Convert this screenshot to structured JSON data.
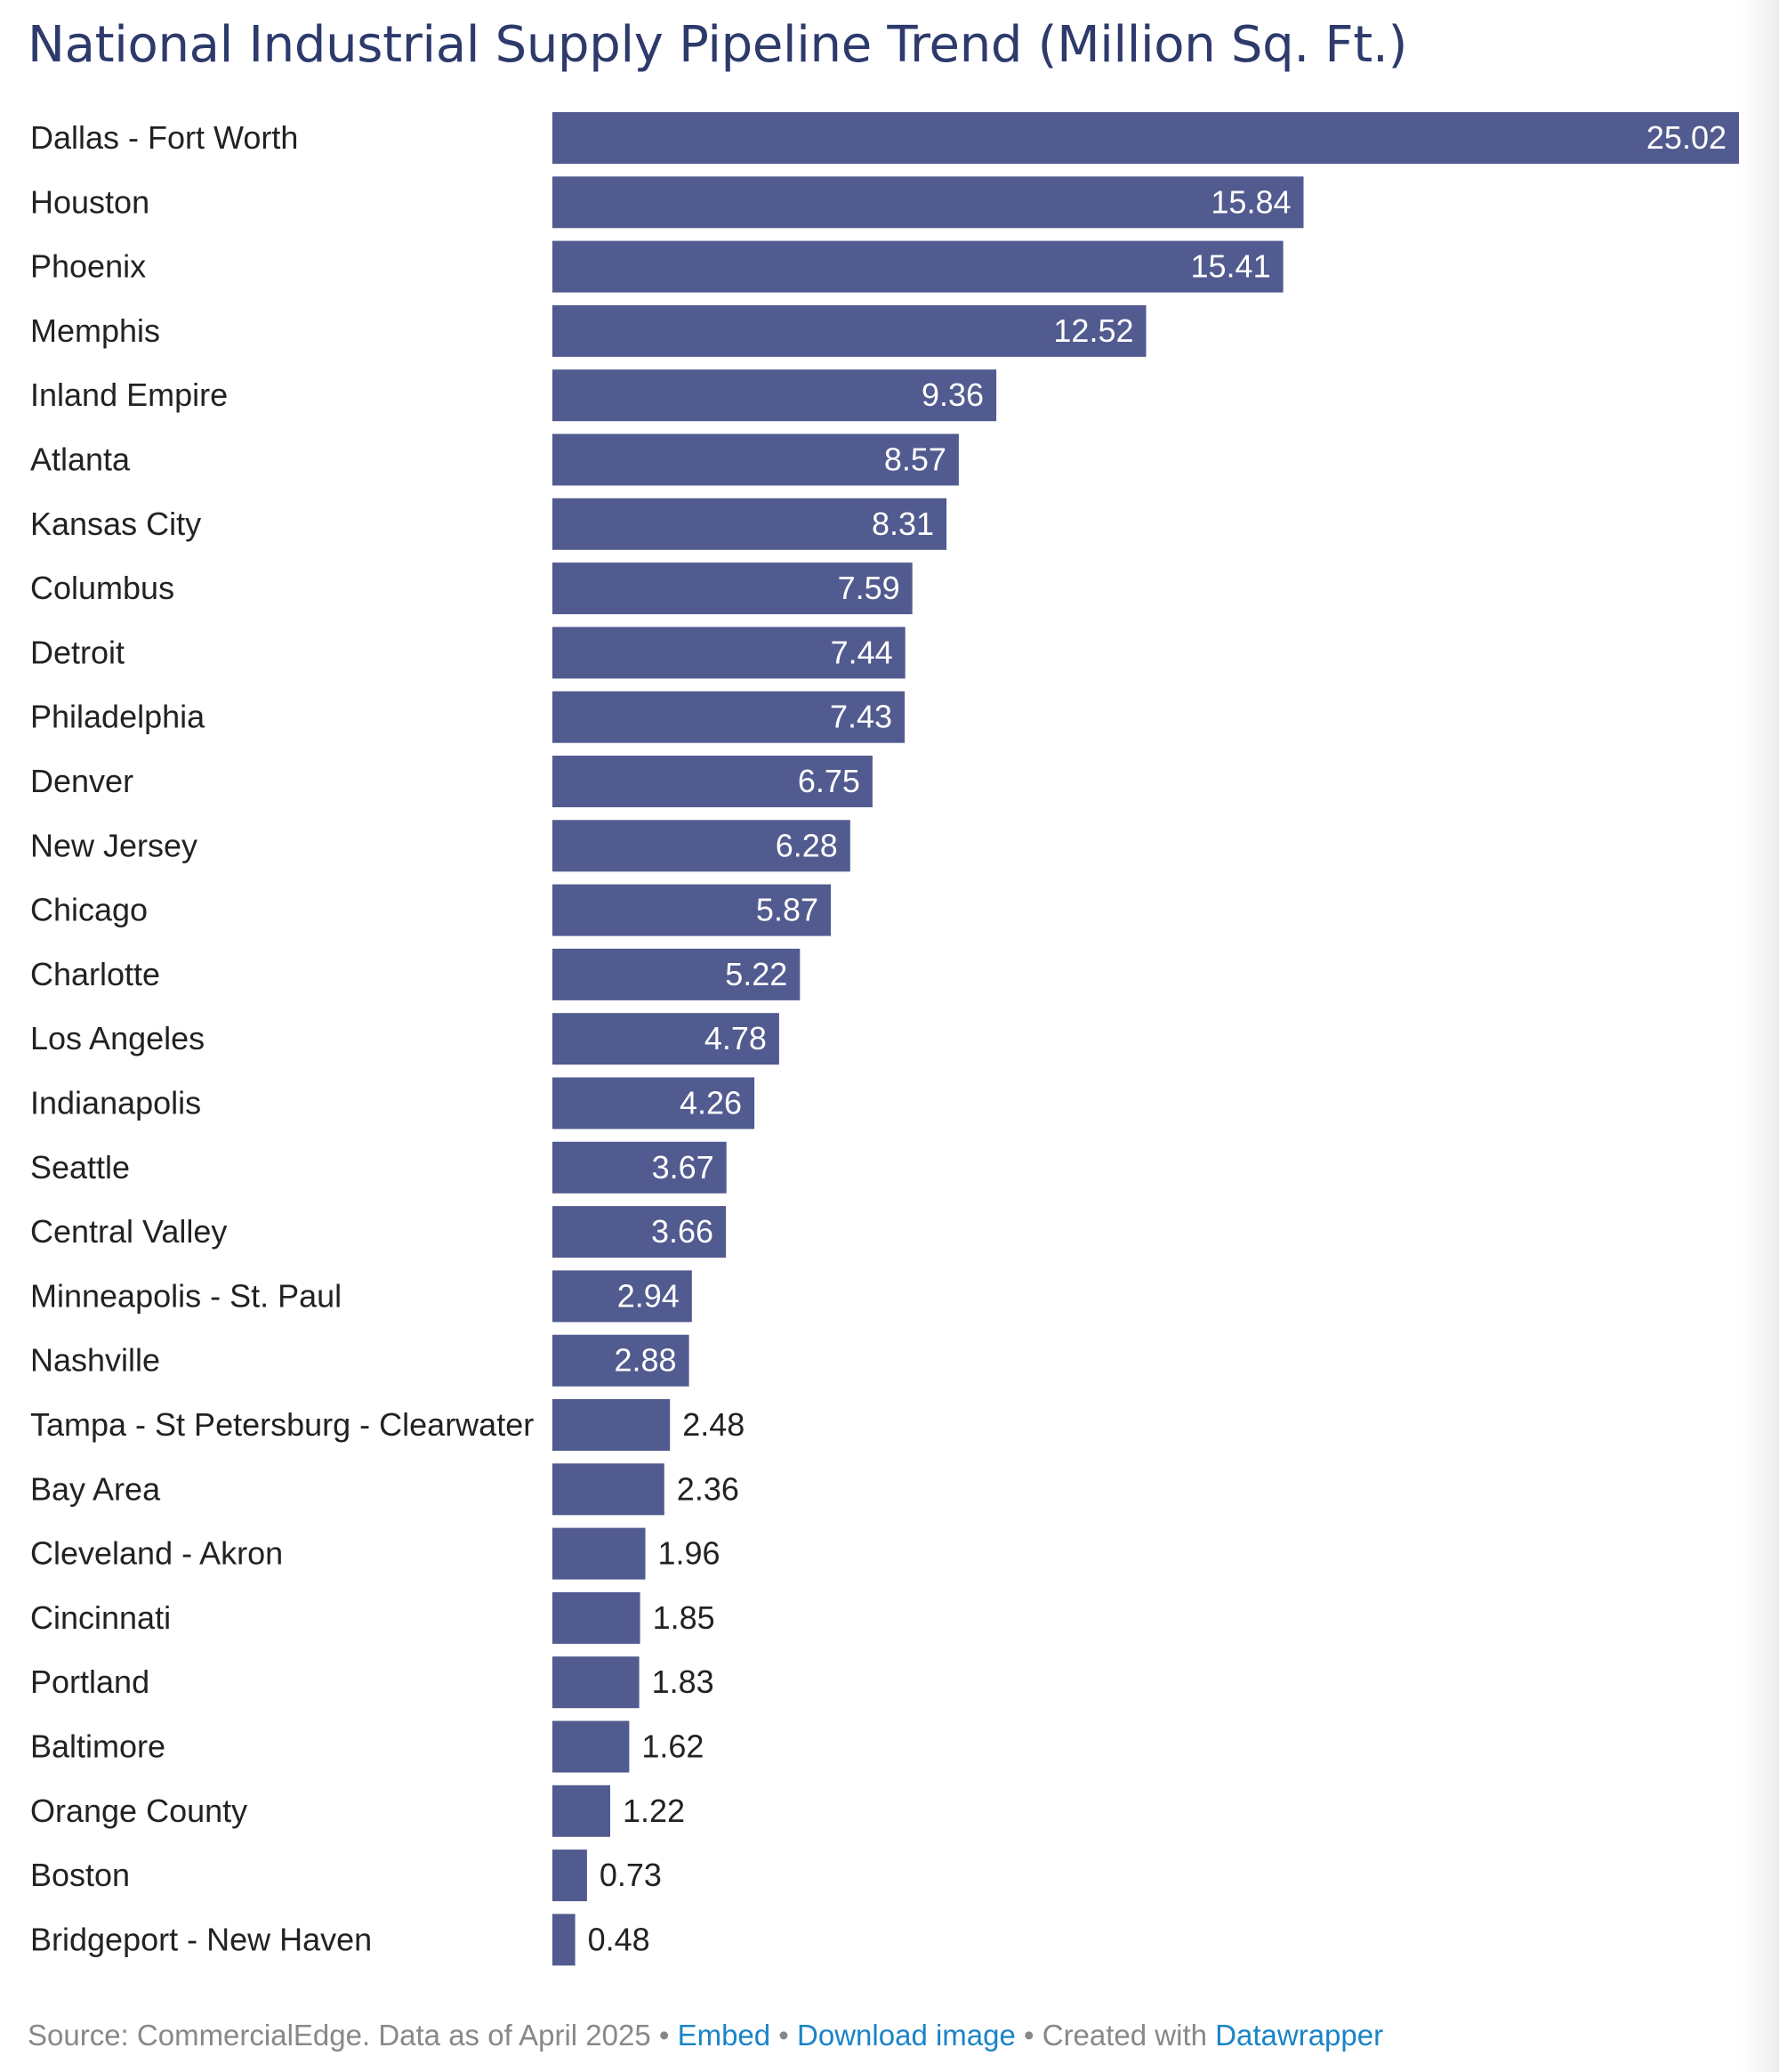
{
  "colors": {
    "bar": "#525b8f",
    "title": "#2d3a6b",
    "label": "#222222",
    "value_inside": "#ffffff",
    "value_outside": "#222222",
    "footer": "#888888",
    "link": "#1a84c7"
  },
  "chart_data": {
    "type": "bar",
    "orientation": "horizontal",
    "title": "National Industrial Supply Pipeline Trend (Million Sq. Ft.)",
    "xlabel": "",
    "ylabel": "",
    "xlim": [
      0,
      25.02
    ],
    "grid": false,
    "categories": [
      "Dallas - Fort Worth",
      "Houston",
      "Phoenix",
      "Memphis",
      "Inland Empire",
      "Atlanta",
      "Kansas City",
      "Columbus",
      "Detroit",
      "Philadelphia",
      "Denver",
      "New Jersey",
      "Chicago",
      "Charlotte",
      "Los Angeles",
      "Indianapolis",
      "Seattle",
      "Central Valley",
      "Minneapolis - St. Paul",
      "Nashville",
      "Tampa - St Petersburg - Clearwater",
      "Bay Area",
      "Cleveland - Akron",
      "Cincinnati",
      "Portland",
      "Baltimore",
      "Orange County",
      "Boston",
      "Bridgeport - New Haven"
    ],
    "values": [
      25.02,
      15.84,
      15.41,
      12.52,
      9.36,
      8.57,
      8.31,
      7.59,
      7.44,
      7.43,
      6.75,
      6.28,
      5.87,
      5.22,
      4.78,
      4.26,
      3.67,
      3.66,
      2.94,
      2.88,
      2.48,
      2.36,
      1.96,
      1.85,
      1.83,
      1.62,
      1.22,
      0.73,
      0.48
    ],
    "value_labels": [
      "25.02",
      "15.84",
      "15.41",
      "12.52",
      "9.36",
      "8.57",
      "8.31",
      "7.59",
      "7.44",
      "7.43",
      "6.75",
      "6.28",
      "5.87",
      "5.22",
      "4.78",
      "4.26",
      "3.67",
      "3.66",
      "2.94",
      "2.88",
      "2.48",
      "2.36",
      "1.96",
      "1.85",
      "1.83",
      "1.62",
      "1.22",
      "0.73",
      "0.48"
    ]
  },
  "footer": {
    "source": "Source: CommercialEdge. Data as of April 2025",
    "sep1": " • ",
    "embed": "Embed",
    "sep2": " • ",
    "download": "Download image",
    "sep3": " • ",
    "created": "Created with ",
    "datawrapper": "Datawrapper"
  }
}
